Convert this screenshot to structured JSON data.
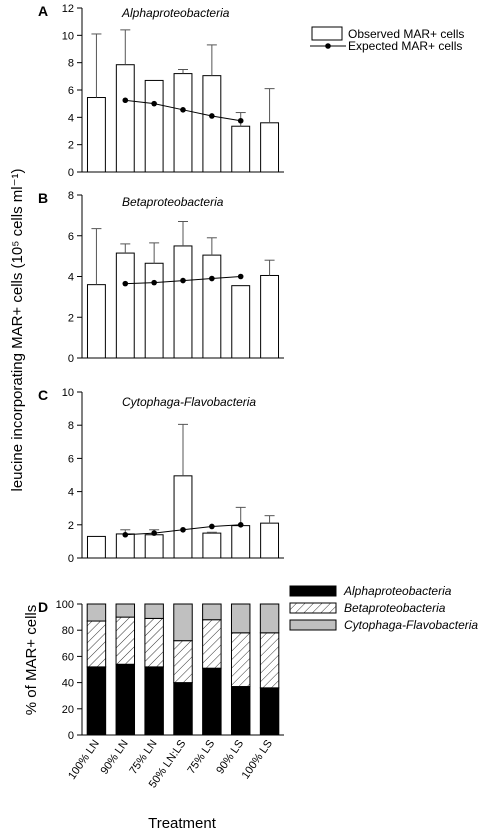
{
  "ylabel": "leucine incorporating MAR+ cells (10⁵ cells ml⁻¹)",
  "xlabel": "Treatment",
  "chart_data": [
    {
      "type": "bar",
      "panel": "A",
      "title": "Alphaproteobacteria",
      "ylim": [
        0,
        12
      ],
      "yticks": [
        0,
        2,
        4,
        6,
        8,
        10,
        12
      ],
      "categories": [
        "100% LN",
        "90% LN",
        "75% LN",
        "50% LN:LS",
        "75% LS",
        "90% LS",
        "100% LS"
      ],
      "legend": {
        "bar": "Observed MAR+ cells",
        "line": "Expected MAR+ cells",
        "position": "top-right"
      },
      "series": [
        {
          "name": "Observed MAR+ cells",
          "type": "bar",
          "values": [
            5.45,
            7.85,
            6.7,
            7.2,
            7.05,
            3.35,
            3.6
          ],
          "errors": [
            4.65,
            2.55,
            0,
            0.3,
            2.25,
            1.0,
            2.5
          ]
        },
        {
          "name": "Expected MAR+ cells",
          "type": "line",
          "values": [
            null,
            5.25,
            5.0,
            4.55,
            4.1,
            3.75,
            null
          ]
        }
      ]
    },
    {
      "type": "bar",
      "panel": "B",
      "title": "Betaproteobacteria",
      "ylim": [
        0,
        8
      ],
      "yticks": [
        0,
        2,
        4,
        6,
        8
      ],
      "categories": [
        "100% LN",
        "90% LN",
        "75% LN",
        "50% LN:LS",
        "75% LS",
        "90% LS",
        "100% LS"
      ],
      "series": [
        {
          "name": "Observed MAR+ cells",
          "type": "bar",
          "values": [
            3.6,
            5.15,
            4.65,
            5.5,
            5.05,
            3.55,
            4.05
          ],
          "errors": [
            2.75,
            0.45,
            1.0,
            1.2,
            0.85,
            0,
            0.75
          ]
        },
        {
          "name": "Expected MAR+ cells",
          "type": "line",
          "values": [
            null,
            3.65,
            3.7,
            3.8,
            3.9,
            4.0,
            null
          ]
        }
      ]
    },
    {
      "type": "bar",
      "panel": "C",
      "title": "Cytophaga-Flavobacteria",
      "ylim": [
        0,
        10
      ],
      "yticks": [
        0,
        2,
        4,
        6,
        8,
        10
      ],
      "categories": [
        "100% LN",
        "90% LN",
        "75% LN",
        "50% LN:LS",
        "75% LS",
        "90% LS",
        "100% LS"
      ],
      "series": [
        {
          "name": "Observed MAR+ cells",
          "type": "bar",
          "values": [
            1.3,
            1.45,
            1.4,
            4.95,
            1.5,
            1.95,
            2.1
          ],
          "errors": [
            0,
            0.25,
            0.3,
            3.1,
            0.05,
            1.1,
            0.45
          ]
        },
        {
          "name": "Expected MAR+ cells",
          "type": "line",
          "values": [
            null,
            1.4,
            1.5,
            1.7,
            1.9,
            2.0,
            null
          ]
        }
      ]
    },
    {
      "type": "bar",
      "stacked": true,
      "panel": "D",
      "title": "",
      "ylabel": "% of MAR+ cells",
      "xlabel": "Treatment",
      "ylim": [
        0,
        100
      ],
      "yticks": [
        0,
        20,
        40,
        60,
        80,
        100
      ],
      "categories": [
        "100% LN",
        "90% LN",
        "75% LN",
        "50% LN:LS",
        "75% LS",
        "90% LS",
        "100% LS"
      ],
      "legend": {
        "position": "top-right"
      },
      "series": [
        {
          "name": "Alphaproteobacteria",
          "color": "#000000",
          "pattern": "solid",
          "values": [
            52,
            54,
            52,
            40,
            51,
            37,
            36
          ]
        },
        {
          "name": "Betaproteobacteria",
          "color": "#ffffff",
          "pattern": "hatch",
          "values": [
            35,
            36,
            37,
            32,
            37,
            41,
            42
          ]
        },
        {
          "name": "Cytophaga-Flavobacteria",
          "color": "#c0c0c0",
          "pattern": "solid",
          "values": [
            13,
            10,
            11,
            28,
            12,
            22,
            22
          ]
        }
      ]
    }
  ]
}
